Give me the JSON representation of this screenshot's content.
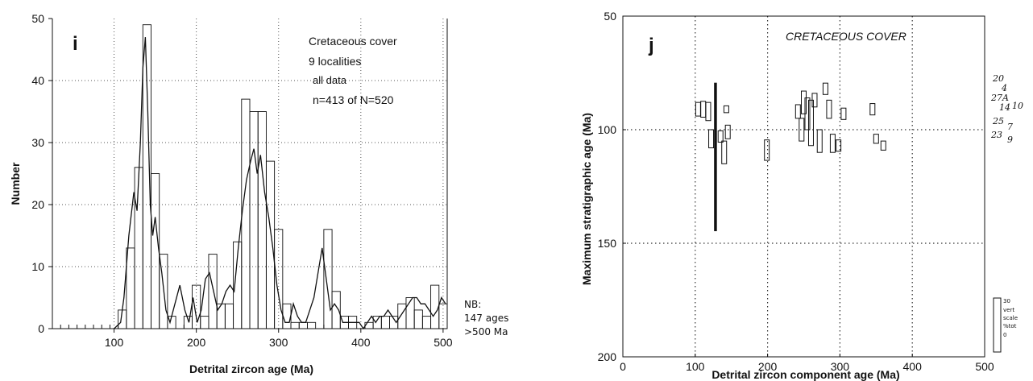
{
  "chart_data": [
    {
      "panel": "i",
      "type": "bar",
      "annotation": [
        "Cretaceous cover",
        "9 localities",
        "all data",
        "n=413 of N=520"
      ],
      "xlabel": "Detrital zircon age (Ma)",
      "ylabel": "Number",
      "xlim": [
        25,
        505
      ],
      "ylim": [
        0,
        50
      ],
      "xticks": [
        100,
        200,
        300,
        400,
        500
      ],
      "yticks": [
        0,
        10,
        20,
        30,
        40,
        50
      ],
      "grid": "dotted",
      "bin_width": 10,
      "bins_start": [
        25,
        35,
        45,
        55,
        65,
        75,
        85,
        95,
        105,
        115,
        125,
        135,
        145,
        155,
        165,
        175,
        185,
        195,
        205,
        215,
        225,
        235,
        245,
        255,
        265,
        275,
        285,
        295,
        305,
        315,
        325,
        335,
        345,
        355,
        365,
        375,
        385,
        395,
        405,
        415,
        425,
        435,
        445,
        455,
        465,
        475,
        485,
        495
      ],
      "values": [
        0,
        0,
        0,
        0,
        0,
        0,
        0,
        0,
        3,
        13,
        26,
        49,
        25,
        12,
        2,
        0,
        2,
        7,
        2,
        12,
        4,
        4,
        14,
        37,
        35,
        35,
        27,
        16,
        4,
        1,
        1,
        1,
        0,
        16,
        6,
        2,
        2,
        0,
        1,
        2,
        2,
        2,
        4,
        5,
        3,
        2,
        7,
        4
      ],
      "curve": {
        "x": [
          100,
          108,
          112,
          118,
          124,
          128,
          132,
          135,
          138,
          141,
          144,
          147,
          150,
          154,
          158,
          163,
          168,
          174,
          180,
          186,
          191,
          196,
          201,
          206,
          211,
          216,
          221,
          226,
          231,
          236,
          241,
          246,
          251,
          256,
          261,
          266,
          270,
          274,
          278,
          283,
          288,
          293,
          298,
          303,
          308,
          313,
          318,
          323,
          328,
          333,
          338,
          343,
          348,
          353,
          358,
          363,
          368,
          373,
          378,
          383,
          388,
          393,
          398,
          403,
          408,
          413,
          418,
          423,
          428,
          433,
          438,
          443,
          448,
          453,
          458,
          463,
          468,
          473,
          478,
          483,
          488,
          493,
          498,
          503
        ],
        "y": [
          0,
          1,
          5,
          15,
          22,
          19,
          30,
          42,
          47,
          35,
          20,
          15,
          18,
          13,
          9,
          3,
          1,
          4,
          7,
          3,
          1,
          5,
          1,
          3,
          8,
          9,
          6,
          3,
          4,
          6,
          7,
          6,
          13,
          19,
          24,
          27,
          29,
          25,
          28,
          22,
          18,
          13,
          7,
          3,
          1,
          1,
          4,
          2,
          1,
          1,
          3,
          5,
          9,
          13,
          8,
          3,
          4,
          3,
          1,
          1,
          1,
          1,
          1,
          0,
          1,
          2,
          1,
          2,
          2,
          3,
          2,
          1,
          2,
          3,
          4,
          5,
          5,
          4,
          4,
          3,
          2,
          3,
          5,
          4
        ]
      },
      "side_note": [
        "NB:",
        "147 ages",
        ">500 Ma"
      ]
    },
    {
      "panel": "j",
      "type": "scatter",
      "title": "CRETACEOUS COVER",
      "xlabel": "Detrital zircon component age (Ma)",
      "ylabel": "Maximum stratigraphic age (Ma)",
      "xlim": [
        0,
        500
      ],
      "ylim": [
        200,
        50
      ],
      "xticks": [
        0,
        100,
        200,
        300,
        400,
        500
      ],
      "yticks": [
        50,
        100,
        150,
        200
      ],
      "grid_x": [
        100,
        200,
        300,
        400
      ],
      "grid_y": [
        100,
        150
      ],
      "boxes_note": "rectangles centered at component age (x) and stratigraphic age (y); height scaled to % of total",
      "boxes": [
        {
          "x": 104,
          "y": 91,
          "h": 6
        },
        {
          "x": 111,
          "y": 91,
          "h": 7
        },
        {
          "x": 118,
          "y": 92,
          "h": 8
        },
        {
          "x": 122,
          "y": 104,
          "h": 8
        },
        {
          "x": 128,
          "y": 112,
          "h": 65
        },
        {
          "x": 135,
          "y": 103,
          "h": 5
        },
        {
          "x": 140,
          "y": 110,
          "h": 10
        },
        {
          "x": 143,
          "y": 91,
          "h": 3
        },
        {
          "x": 145,
          "y": 101,
          "h": 6
        },
        {
          "x": 199,
          "y": 109,
          "h": 9
        },
        {
          "x": 242,
          "y": 92,
          "h": 6
        },
        {
          "x": 247,
          "y": 100,
          "h": 10
        },
        {
          "x": 250,
          "y": 88,
          "h": 10
        },
        {
          "x": 255,
          "y": 93,
          "h": 14
        },
        {
          "x": 260,
          "y": 97,
          "h": 20
        },
        {
          "x": 265,
          "y": 87,
          "h": 6
        },
        {
          "x": 272,
          "y": 105,
          "h": 10
        },
        {
          "x": 280,
          "y": 82,
          "h": 5
        },
        {
          "x": 285,
          "y": 91,
          "h": 8
        },
        {
          "x": 290,
          "y": 106,
          "h": 8
        },
        {
          "x": 298,
          "y": 107,
          "h": 5
        },
        {
          "x": 305,
          "y": 93,
          "h": 5
        },
        {
          "x": 345,
          "y": 91,
          "h": 5
        },
        {
          "x": 350,
          "y": 104,
          "h": 4
        },
        {
          "x": 360,
          "y": 107,
          "h": 4
        }
      ],
      "locality_labels": [
        "20",
        "4",
        "27A",
        "14",
        "10",
        "25",
        "7",
        "23",
        "9"
      ],
      "scale_legend": [
        "30",
        "vert",
        "scale",
        "%tot",
        "0"
      ]
    }
  ]
}
